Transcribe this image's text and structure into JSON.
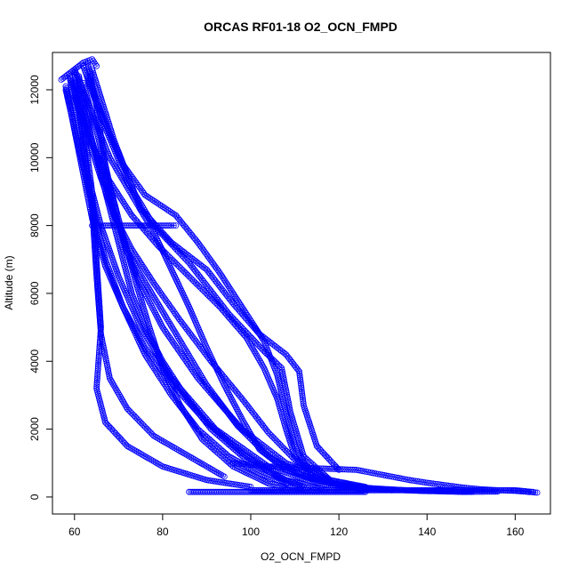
{
  "chart_data": {
    "type": "scatter",
    "title": "ORCAS RF01-18 O2_OCN_FMPD",
    "xlabel": "O2_OCN_FMPD",
    "ylabel": "Altitude (m)",
    "xlim": [
      55,
      168
    ],
    "ylim": [
      -500,
      13100
    ],
    "xticks": [
      60,
      80,
      100,
      120,
      140,
      160
    ],
    "yticks": [
      0,
      2000,
      4000,
      6000,
      8000,
      10000,
      12000
    ],
    "grid": false,
    "marker": "open-circle",
    "color": "#0000ff",
    "profiles": [
      {
        "name": "",
        "points": [
          [
            63,
            12800
          ],
          [
            65,
            11500
          ],
          [
            67,
            9800
          ],
          [
            70,
            8000
          ],
          [
            74,
            6500
          ],
          [
            80,
            5000
          ],
          [
            88,
            3500
          ],
          [
            98,
            2000
          ],
          [
            108,
            1000
          ],
          [
            118,
            500
          ],
          [
            126,
            250
          ]
        ]
      },
      {
        "name": "",
        "points": [
          [
            60,
            12500
          ],
          [
            62,
            11000
          ],
          [
            64,
            9000
          ],
          [
            65,
            7000
          ],
          [
            66,
            5000
          ],
          [
            65,
            3200
          ],
          [
            67,
            2200
          ],
          [
            72,
            1500
          ],
          [
            80,
            900
          ],
          [
            90,
            500
          ],
          [
            100,
            300
          ]
        ]
      },
      {
        "name": "",
        "points": [
          [
            59,
            12300
          ],
          [
            61,
            11000
          ],
          [
            63,
            9500
          ],
          [
            66,
            8000
          ],
          [
            70,
            6500
          ],
          [
            75,
            5000
          ],
          [
            82,
            3500
          ],
          [
            92,
            2000
          ],
          [
            104,
            900
          ],
          [
            115,
            400
          ],
          [
            128,
            200
          ]
        ]
      },
      {
        "name": "",
        "points": [
          [
            62,
            12700
          ],
          [
            66,
            11200
          ],
          [
            72,
            9300
          ],
          [
            78,
            8000
          ],
          [
            86,
            6900
          ],
          [
            95,
            5400
          ],
          [
            103,
            4300
          ],
          [
            107,
            3800
          ],
          [
            109,
            2500
          ],
          [
            112,
            1200
          ],
          [
            118,
            500
          ]
        ]
      },
      {
        "name": "",
        "points": [
          [
            64,
            12600
          ],
          [
            69,
            10500
          ],
          [
            75,
            8500
          ],
          [
            82,
            7500
          ],
          [
            90,
            6700
          ],
          [
            96,
            5700
          ],
          [
            102,
            4800
          ],
          [
            108,
            4200
          ],
          [
            111,
            3700
          ],
          [
            112,
            2700
          ],
          [
            115,
            1500
          ],
          [
            120,
            800
          ]
        ]
      },
      {
        "name": "",
        "points": [
          [
            61,
            12400
          ],
          [
            64,
            10500
          ],
          [
            68,
            8800
          ],
          [
            72,
            7200
          ],
          [
            78,
            5900
          ],
          [
            84,
            4600
          ],
          [
            90,
            3300
          ],
          [
            97,
            2100
          ],
          [
            104,
            1200
          ],
          [
            112,
            600
          ],
          [
            122,
            300
          ],
          [
            135,
            200
          ],
          [
            150,
            150
          ]
        ]
      },
      {
        "name": "",
        "points": [
          [
            60,
            12200
          ],
          [
            62,
            10500
          ],
          [
            64,
            8500
          ],
          [
            65,
            6500
          ],
          [
            66,
            4800
          ],
          [
            68,
            3500
          ],
          [
            72,
            2600
          ],
          [
            78,
            1800
          ],
          [
            86,
            1200
          ],
          [
            94,
            600
          ]
        ]
      },
      {
        "name": "",
        "points": [
          [
            58,
            12100
          ],
          [
            60,
            10800
          ],
          [
            62,
            9500
          ],
          [
            64,
            8200
          ],
          [
            67,
            6800
          ],
          [
            71,
            5600
          ],
          [
            76,
            4400
          ],
          [
            83,
            3200
          ],
          [
            90,
            2200
          ],
          [
            98,
            1300
          ],
          [
            106,
            600
          ],
          [
            112,
            300
          ]
        ]
      },
      {
        "name": "",
        "points": [
          [
            63,
            12400
          ],
          [
            67,
            11000
          ],
          [
            71,
            9800
          ],
          [
            76,
            8900
          ],
          [
            83,
            8300
          ],
          [
            88,
            7500
          ],
          [
            93,
            6600
          ],
          [
            98,
            5600
          ],
          [
            103,
            4600
          ],
          [
            106,
            3600
          ],
          [
            108,
            2500
          ],
          [
            110,
            1500
          ],
          [
            113,
            800
          ]
        ]
      },
      {
        "name": "",
        "points": [
          [
            58,
            12000
          ],
          [
            61,
            10300
          ],
          [
            64,
            8600
          ],
          [
            67,
            7000
          ],
          [
            71,
            5600
          ],
          [
            76,
            4200
          ],
          [
            82,
            3000
          ],
          [
            88,
            2000
          ],
          [
            95,
            1200
          ],
          [
            102,
            700
          ],
          [
            108,
            400
          ]
        ]
      },
      {
        "name": "",
        "points": [
          [
            60,
            12600
          ],
          [
            64,
            11300
          ],
          [
            68,
            10000
          ],
          [
            73,
            8900
          ],
          [
            78,
            7800
          ],
          [
            82,
            6700
          ],
          [
            86,
            5600
          ],
          [
            90,
            4400
          ],
          [
            94,
            3300
          ],
          [
            98,
            2300
          ],
          [
            102,
            1400
          ],
          [
            108,
            800
          ],
          [
            118,
            400
          ],
          [
            128,
            250
          ],
          [
            138,
            180
          ],
          [
            148,
            150
          ],
          [
            156,
            160
          ]
        ]
      },
      {
        "name": "",
        "points": [
          [
            62,
            12200
          ],
          [
            65,
            10800
          ],
          [
            68,
            9200
          ],
          [
            71,
            7700
          ],
          [
            74,
            6300
          ],
          [
            77,
            5000
          ],
          [
            80,
            3800
          ],
          [
            84,
            2700
          ],
          [
            89,
            1700
          ],
          [
            96,
            900
          ],
          [
            104,
            400
          ],
          [
            112,
            200
          ]
        ]
      },
      {
        "name": "",
        "points": [
          [
            60,
            11800
          ],
          [
            63,
            10600
          ],
          [
            66,
            9400
          ],
          [
            69,
            8300
          ],
          [
            73,
            7300
          ],
          [
            78,
            6300
          ],
          [
            84,
            5200
          ],
          [
            91,
            4000
          ],
          [
            98,
            2900
          ],
          [
            104,
            1900
          ],
          [
            110,
            1100
          ],
          [
            118,
            500
          ],
          [
            126,
            300
          ]
        ]
      },
      {
        "name": "",
        "points": [
          [
            61,
            12000
          ],
          [
            63,
            11000
          ],
          [
            65,
            10000
          ],
          [
            67,
            9000
          ],
          [
            69,
            8000
          ],
          [
            71,
            7000
          ],
          [
            73,
            6000
          ],
          [
            76,
            5000
          ],
          [
            80,
            4000
          ],
          [
            85,
            3000
          ],
          [
            91,
            2000
          ],
          [
            99,
            1100
          ],
          [
            108,
            500
          ],
          [
            116,
            250
          ]
        ]
      },
      {
        "name": "",
        "points": [
          [
            59,
            12400
          ],
          [
            61,
            11500
          ],
          [
            64,
            10400
          ],
          [
            68,
            9300
          ],
          [
            73,
            8300
          ],
          [
            79,
            7400
          ],
          [
            86,
            6500
          ],
          [
            93,
            5600
          ],
          [
            99,
            4700
          ],
          [
            103,
            3800
          ],
          [
            106,
            2900
          ],
          [
            108,
            2000
          ],
          [
            110,
            1200
          ],
          [
            114,
            600
          ],
          [
            122,
            300
          ],
          [
            132,
            200
          ]
        ]
      },
      {
        "name": "",
        "points": [
          [
            64,
            8000
          ],
          [
            66,
            8000
          ],
          [
            68,
            8000
          ],
          [
            70,
            8000
          ],
          [
            72,
            8000
          ],
          [
            74,
            8000
          ],
          [
            76,
            8000
          ],
          [
            78,
            8000
          ],
          [
            80,
            8000
          ],
          [
            82,
            8000
          ],
          [
            83,
            8000
          ]
        ]
      },
      {
        "name": "",
        "points": [
          [
            96,
            1000
          ],
          [
            100,
            950
          ],
          [
            104,
            900
          ],
          [
            108,
            880
          ],
          [
            112,
            860
          ],
          [
            116,
            840
          ],
          [
            120,
            820
          ],
          [
            124,
            800
          ],
          [
            128,
            700
          ],
          [
            132,
            600
          ],
          [
            136,
            500
          ],
          [
            140,
            420
          ],
          [
            144,
            350
          ],
          [
            148,
            280
          ],
          [
            152,
            230
          ],
          [
            156,
            200
          ],
          [
            160,
            180
          ],
          [
            165,
            130
          ]
        ]
      },
      {
        "name": "",
        "points": [
          [
            100,
            200
          ],
          [
            104,
            200
          ],
          [
            108,
            200
          ],
          [
            112,
            200
          ],
          [
            116,
            200
          ],
          [
            120,
            200
          ],
          [
            124,
            200
          ],
          [
            128,
            200
          ],
          [
            132,
            200
          ],
          [
            136,
            200
          ],
          [
            140,
            200
          ],
          [
            144,
            200
          ],
          [
            148,
            200
          ],
          [
            152,
            200
          ],
          [
            156,
            200
          ],
          [
            160,
            200
          ],
          [
            164,
            150
          ]
        ]
      },
      {
        "name": "",
        "points": [
          [
            86,
            150
          ],
          [
            88,
            150
          ],
          [
            90,
            150
          ],
          [
            92,
            150
          ],
          [
            94,
            150
          ],
          [
            96,
            150
          ],
          [
            98,
            150
          ],
          [
            100,
            150
          ],
          [
            102,
            150
          ],
          [
            104,
            150
          ],
          [
            106,
            150
          ],
          [
            108,
            150
          ],
          [
            110,
            150
          ],
          [
            112,
            150
          ],
          [
            114,
            150
          ],
          [
            116,
            150
          ],
          [
            118,
            150
          ],
          [
            120,
            150
          ],
          [
            122,
            150
          ],
          [
            124,
            150
          ],
          [
            126,
            150
          ]
        ]
      },
      {
        "name": "",
        "points": [
          [
            57,
            12300
          ],
          [
            58,
            12400
          ],
          [
            59,
            12500
          ],
          [
            60,
            12600
          ],
          [
            61,
            12700
          ],
          [
            62,
            12800
          ],
          [
            63,
            12850
          ],
          [
            64,
            12900
          ],
          [
            65,
            12700
          ]
        ]
      }
    ]
  }
}
